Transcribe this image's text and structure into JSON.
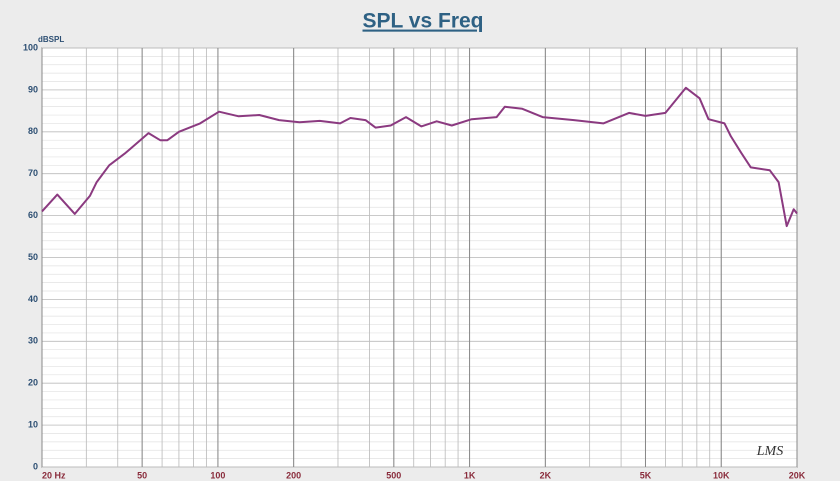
{
  "chart_data": {
    "type": "line",
    "title": "SPL vs Freq",
    "y_label": "dBSPL",
    "annotation": "LMS",
    "log_x": true,
    "grid": true,
    "xlim": [
      20,
      20000
    ],
    "ylim": [
      0,
      100
    ],
    "yticks": [
      0,
      10,
      20,
      30,
      40,
      50,
      60,
      70,
      80,
      90,
      100
    ],
    "xticks": [
      {
        "value": 20,
        "label": "20  Hz"
      },
      50,
      100,
      200,
      500,
      {
        "value": 1000,
        "label": "1K"
      },
      {
        "value": 2000,
        "label": "2K"
      },
      {
        "value": 5000,
        "label": "5K"
      },
      {
        "value": 10000,
        "label": "10K"
      },
      {
        "value": 20000,
        "label": "20K"
      }
    ],
    "x": [
      20,
      23,
      27,
      31,
      33,
      37,
      43,
      53,
      59,
      63,
      70,
      85,
      101,
      121,
      146,
      175,
      211,
      254,
      306,
      336,
      386,
      423,
      486,
      559,
      643,
      740,
      850,
      1020,
      1280,
      1380,
      1620,
      1950,
      2600,
      3400,
      4300,
      5000,
      6000,
      7240,
      8200,
      8900,
      10300,
      10900,
      12000,
      13100,
      15600,
      16900,
      18200,
      19400,
      20000
    ],
    "series": [
      {
        "name": "SPL",
        "color": "#8b3a80",
        "values": [
          61,
          65,
          60.4,
          64.7,
          68,
          72,
          75,
          79.7,
          78,
          78,
          80,
          82,
          84.8,
          83.7,
          84,
          82.8,
          82.3,
          82.6,
          82,
          83.3,
          82.8,
          81,
          81.5,
          83.5,
          81.3,
          82.5,
          81.5,
          83,
          83.5,
          86,
          85.5,
          83.5,
          82.8,
          82,
          84.5,
          83.8,
          84.5,
          90.5,
          88,
          83,
          82,
          79,
          75,
          71.5,
          70.8,
          68,
          57.5,
          61.5,
          60.5
        ]
      }
    ]
  }
}
